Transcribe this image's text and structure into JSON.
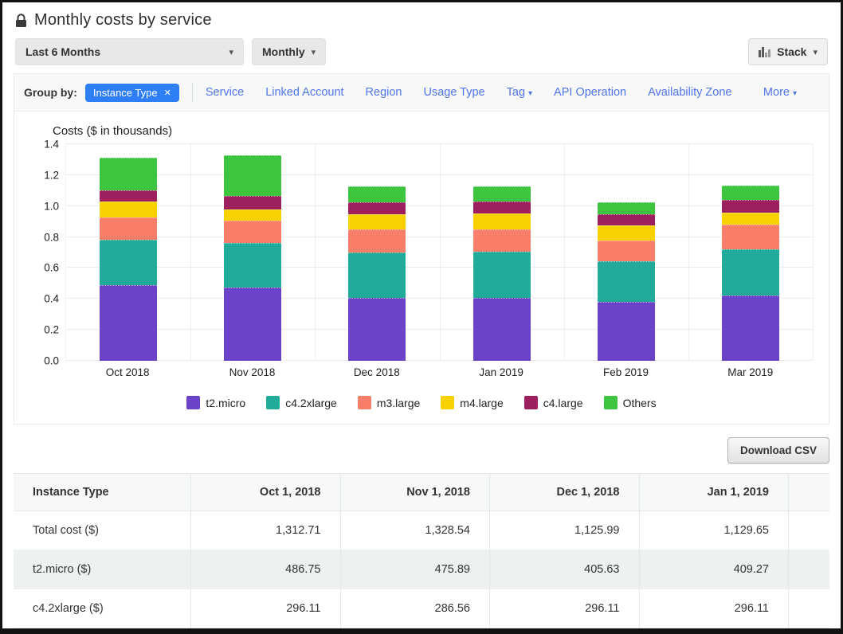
{
  "header": {
    "title": "Monthly costs by service"
  },
  "controls": {
    "time_range": "Last 6 Months",
    "granularity": "Monthly",
    "chart_type": "Stack"
  },
  "group_by": {
    "label": "Group by:",
    "active": "Instance Type",
    "links": [
      {
        "label": "Service",
        "caret": false
      },
      {
        "label": "Linked Account",
        "caret": false
      },
      {
        "label": "Region",
        "caret": false
      },
      {
        "label": "Usage Type",
        "caret": false
      },
      {
        "label": "Tag",
        "caret": true
      },
      {
        "label": "API Operation",
        "caret": false
      },
      {
        "label": "Availability Zone",
        "caret": false
      },
      {
        "label": "More",
        "caret": true
      }
    ]
  },
  "chart_data": {
    "type": "bar",
    "stacked": true,
    "title": "Costs ($ in thousands)",
    "categories": [
      "Oct 2018",
      "Nov 2018",
      "Dec 2018",
      "Jan 2019",
      "Feb 2019",
      "Mar 2019"
    ],
    "series": [
      {
        "name": "t2.micro",
        "color": "#6b43c8",
        "values": [
          0.487,
          0.476,
          0.406,
          0.409,
          0.381,
          0.42
        ]
      },
      {
        "name": "c4.2xlarge",
        "color": "#22ab9b",
        "values": [
          0.296,
          0.287,
          0.296,
          0.296,
          0.264,
          0.3
        ]
      },
      {
        "name": "m3.large",
        "color": "#f97e6a",
        "values": [
          0.142,
          0.142,
          0.148,
          0.145,
          0.13,
          0.16
        ]
      },
      {
        "name": "m4.large",
        "color": "#f8d200",
        "values": [
          0.105,
          0.072,
          0.095,
          0.1,
          0.1,
          0.078
        ]
      },
      {
        "name": "c4.large",
        "color": "#9e1f5e",
        "values": [
          0.071,
          0.088,
          0.081,
          0.08,
          0.07,
          0.082
        ]
      },
      {
        "name": "Others",
        "color": "#3ec53f",
        "values": [
          0.212,
          0.264,
          0.1,
          0.1,
          0.077,
          0.095
        ]
      }
    ],
    "totals": [
      1.31271,
      1.32854,
      1.12599,
      1.12965,
      1.022,
      1.135
    ],
    "ylim": [
      0,
      1.4
    ],
    "yticks": [
      0.0,
      0.2,
      0.4,
      0.6,
      0.8,
      1.0,
      1.2,
      1.4
    ],
    "grid": true,
    "legend_position": "bottom"
  },
  "download_button": "Download CSV",
  "table": {
    "columns": [
      "Instance Type",
      "Oct 1, 2018",
      "Nov 1, 2018",
      "Dec 1, 2018",
      "Jan 1, 2019"
    ],
    "rows": [
      {
        "label": "Total cost ($)",
        "values": [
          "1,312.71",
          "1,328.54",
          "1,125.99",
          "1,129.65"
        ]
      },
      {
        "label": "t2.micro ($)",
        "values": [
          "486.75",
          "475.89",
          "405.63",
          "409.27"
        ]
      },
      {
        "label": "c4.2xlarge ($)",
        "values": [
          "296.11",
          "286.56",
          "296.11",
          "296.11"
        ]
      }
    ]
  },
  "colors": {
    "pill_blue": "#2e7ef5",
    "link_blue": "#5174e8",
    "grid_line": "#ececec",
    "groupby_bg": "#f7f8f8",
    "zebra_row": "#edf1f1"
  }
}
